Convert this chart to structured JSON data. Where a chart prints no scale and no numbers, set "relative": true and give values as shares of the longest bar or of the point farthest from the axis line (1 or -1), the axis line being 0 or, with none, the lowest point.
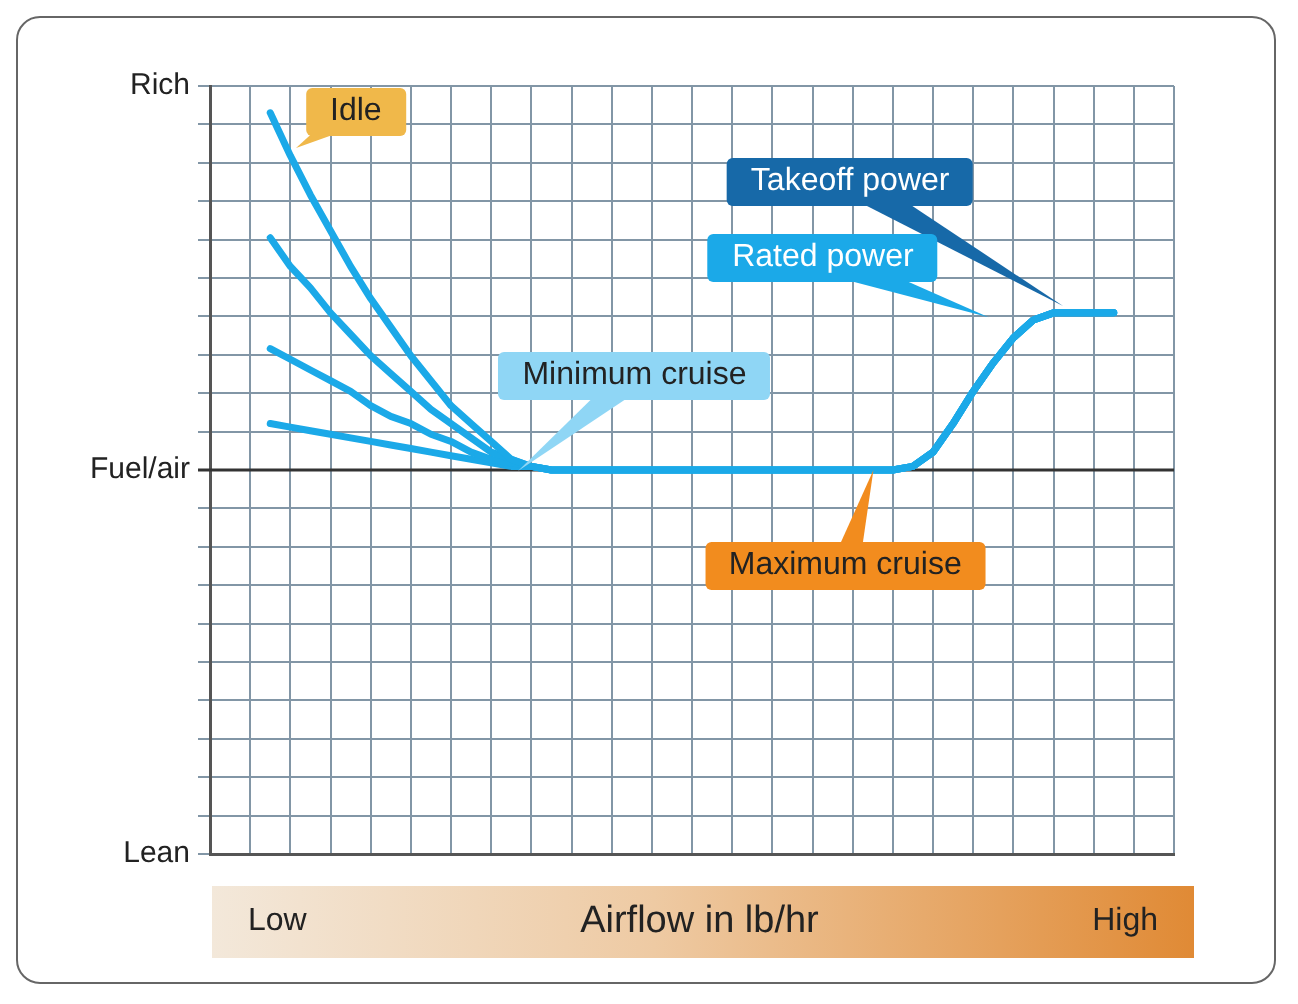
{
  "chart_data": {
    "type": "line",
    "relative": true,
    "categories": [
      null,
      null,
      null,
      null,
      null,
      null,
      null,
      null,
      null,
      null,
      null,
      null,
      null,
      null,
      null,
      null,
      null,
      null,
      null,
      null,
      null,
      null,
      null,
      null,
      null,
      null,
      null,
      null,
      null,
      null,
      null,
      null,
      null,
      null,
      null,
      null,
      null,
      null,
      null,
      null,
      null,
      null,
      null
    ],
    "grid": true,
    "legend": false,
    "marker": "none",
    "line_style": "solid",
    "series": [
      {
        "color": "#1ba9e8",
        "values": [
          1,
          0.88,
          0.77,
          0.67,
          0.57,
          0.48,
          0.4,
          0.32,
          0.25,
          0.18,
          0.13,
          0.08,
          0.03,
          0.01,
          0,
          0,
          0,
          0,
          0,
          0,
          0,
          0,
          0,
          0,
          0,
          0,
          0,
          0,
          0,
          0,
          0,
          0,
          0.01,
          0.05,
          0.13,
          0.22,
          0.3,
          0.37,
          0.42,
          0.44,
          0.44,
          0.44,
          0.44
        ]
      },
      {
        "color": "#1ba9e8",
        "values": [
          0.65,
          0.57,
          0.51,
          0.44,
          0.38,
          0.32,
          0.27,
          0.22,
          0.17,
          0.13,
          0.09,
          0.05,
          0.03,
          0.01,
          0,
          0,
          0,
          0,
          0,
          0,
          0,
          0,
          0,
          0,
          0,
          0,
          0,
          0,
          0,
          0,
          0,
          0,
          0.01,
          0.05,
          0.13,
          0.22,
          0.3,
          0.37,
          0.42,
          0.44,
          0.44,
          0.44,
          0.44
        ]
      },
      {
        "color": "#1ba9e8",
        "values": [
          0.34,
          0.31,
          0.28,
          0.25,
          0.22,
          0.18,
          0.15,
          0.13,
          0.1,
          0.08,
          0.05,
          0.03,
          0.02,
          0.01,
          0,
          0,
          0,
          0,
          0,
          0,
          0,
          0,
          0,
          0,
          0,
          0,
          0,
          0,
          0,
          0,
          0,
          0,
          0.01,
          0.05,
          0.13,
          0.22,
          0.3,
          0.37,
          0.42,
          0.44,
          0.44,
          0.44,
          0.44
        ]
      },
      {
        "color": "#1ba9e8",
        "values": [
          0.13,
          0.12,
          0.11,
          0.1,
          0.09,
          0.08,
          0.07,
          0.06,
          0.05,
          0.04,
          0.03,
          0.02,
          0.01,
          0.01,
          0,
          0,
          0,
          0,
          0,
          0,
          0,
          0,
          0,
          0,
          0,
          0,
          0,
          0,
          0,
          0,
          0,
          0,
          0.01,
          0.05,
          0.13,
          0.22,
          0.3,
          0.37,
          0.42,
          0.44,
          0.44,
          0.44,
          0.44
        ]
      }
    ],
    "annotations": [
      "Idle",
      "Takeoff power",
      "Rated power",
      "Minimum cruise",
      "Maximum cruise",
      "Low",
      "Airflow in lb/hr",
      "High",
      "Rich",
      "Lean",
      "Fuel/air"
    ]
  }
}
